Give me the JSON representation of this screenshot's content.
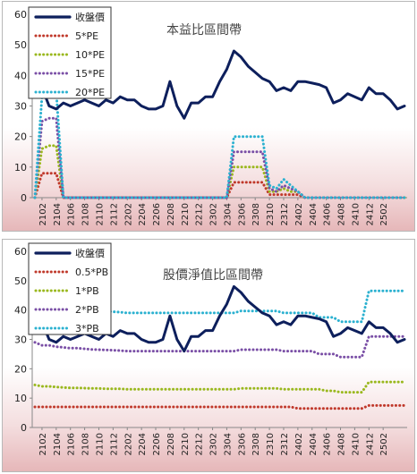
{
  "colors": {
    "price": "#0d1f5c",
    "s1": "#c0392b",
    "s2": "#9ab81e",
    "s3": "#7a4fa6",
    "s4": "#2bb1d0"
  },
  "chart_data": [
    {
      "type": "line",
      "title": "本益比區間帶",
      "ylim": [
        0,
        60
      ],
      "yticks": [
        "0",
        "10",
        "20",
        "30",
        "40",
        "50",
        "60"
      ],
      "x_tick_labels": [
        "2102",
        "2104",
        "2106",
        "2108",
        "2110",
        "2112",
        "2202",
        "2204",
        "2206",
        "2208",
        "2210",
        "2212",
        "2302",
        "2304",
        "2306",
        "2308",
        "2310",
        "2312",
        "2402",
        "2404",
        "2406",
        "2408",
        "2410",
        "2412",
        "2502"
      ],
      "x_first": "2101",
      "x_last": "2503",
      "legend_position": "top-left",
      "series": [
        {
          "name": "收盤價",
          "color_key": "price",
          "style": "solid",
          "values": [
            37,
            36,
            30,
            29,
            31,
            30,
            31,
            32,
            31,
            30,
            32,
            31,
            33,
            32,
            32,
            30,
            29,
            29,
            30,
            38,
            30,
            26,
            31,
            31,
            33,
            33,
            38,
            42,
            48,
            46,
            43,
            41,
            39,
            38,
            35,
            36,
            35,
            38,
            38,
            37.5,
            37,
            36,
            31,
            32,
            34,
            33,
            32,
            36,
            34,
            34,
            32,
            29,
            30
          ]
        },
        {
          "name": "5*PE",
          "color_key": "s1",
          "style": "dotted",
          "values": [
            0,
            8,
            8,
            8,
            0,
            0,
            0,
            0,
            0,
            0,
            0,
            0,
            0,
            0,
            0,
            0,
            0,
            0,
            0,
            0,
            0,
            0,
            0,
            0,
            0,
            0,
            0,
            0,
            5,
            5,
            5,
            5,
            5,
            1,
            1,
            1,
            1,
            1,
            0,
            0,
            0,
            0,
            0,
            0,
            0,
            0,
            0,
            0,
            0,
            0,
            0,
            0,
            0
          ]
        },
        {
          "name": "10*PE",
          "color_key": "s2",
          "style": "dotted",
          "values": [
            0,
            16,
            17,
            17,
            0,
            0,
            0,
            0,
            0,
            0,
            0,
            0,
            0,
            0,
            0,
            0,
            0,
            0,
            0,
            0,
            0,
            0,
            0,
            0,
            0,
            0,
            0,
            0,
            10,
            10,
            10,
            10,
            10,
            2,
            2,
            3,
            2,
            2,
            0,
            0,
            0,
            0,
            0,
            0,
            0,
            0,
            0,
            0,
            0,
            0,
            0,
            0,
            0
          ]
        },
        {
          "name": "15*PE",
          "color_key": "s3",
          "style": "dotted",
          "values": [
            0,
            25,
            26,
            26,
            0,
            0,
            0,
            0,
            0,
            0,
            0,
            0,
            0,
            0,
            0,
            0,
            0,
            0,
            0,
            0,
            0,
            0,
            0,
            0,
            0,
            0,
            0,
            0,
            15,
            15,
            15,
            15,
            15,
            3,
            2,
            4,
            3,
            2,
            0,
            0,
            0,
            0,
            0,
            0,
            0,
            0,
            0,
            0,
            0,
            0,
            0,
            0,
            0
          ]
        },
        {
          "name": "20*PE",
          "color_key": "s4",
          "style": "dotted",
          "values": [
            0,
            33,
            34,
            35,
            0,
            0,
            0,
            0,
            0,
            0,
            0,
            0,
            0,
            0,
            0,
            0,
            0,
            0,
            0,
            0,
            0,
            0,
            0,
            0,
            0,
            0,
            0,
            0,
            20,
            20,
            20,
            20,
            20,
            4,
            3,
            6,
            4,
            2,
            0,
            0,
            0,
            0,
            0,
            0,
            0,
            0,
            0,
            0,
            0,
            0,
            0,
            0,
            0
          ]
        }
      ]
    },
    {
      "type": "line",
      "title": "股價淨值比區間帶",
      "ylim": [
        0,
        60
      ],
      "yticks": [
        "0",
        "10",
        "20",
        "30",
        "40",
        "50",
        "60"
      ],
      "x_tick_labels": [
        "2102",
        "2104",
        "2106",
        "2108",
        "2110",
        "2112",
        "2202",
        "2204",
        "2206",
        "2208",
        "2210",
        "2212",
        "2302",
        "2304",
        "2306",
        "2308",
        "2310",
        "2312",
        "2402",
        "2404",
        "2406",
        "2408",
        "2410",
        "2412",
        "2502"
      ],
      "x_first": "2101",
      "x_last": "2503",
      "legend_position": "top-left",
      "series": [
        {
          "name": "收盤價",
          "color_key": "price",
          "style": "solid",
          "values": [
            37,
            36,
            30,
            29,
            31,
            30,
            31,
            32,
            31,
            30,
            32,
            31,
            33,
            32,
            32,
            30,
            29,
            29,
            30,
            38,
            30,
            26,
            31,
            31,
            33,
            33,
            38,
            42,
            48,
            46,
            43,
            41,
            39,
            38,
            35,
            36,
            35,
            38,
            38,
            37.5,
            37,
            36,
            31,
            32,
            34,
            33,
            32,
            36,
            34,
            34,
            32,
            29,
            30
          ]
        },
        {
          "name": "0.5*PB",
          "color_key": "s1",
          "style": "dotted",
          "values": [
            7,
            7,
            7,
            7,
            7,
            7,
            7,
            7,
            7,
            7,
            7,
            7,
            7,
            7,
            7,
            7,
            7,
            7,
            7,
            7,
            7,
            7,
            7,
            7,
            7,
            7,
            7,
            7,
            7,
            7,
            7,
            7,
            7,
            7,
            7,
            7,
            7,
            6.5,
            6.5,
            6.5,
            6.5,
            6.5,
            6.5,
            6.5,
            6.5,
            6.5,
            6.5,
            7.5,
            7.5,
            7.5,
            7.5,
            7.5,
            7.5
          ]
        },
        {
          "name": "1*PB",
          "color_key": "s2",
          "style": "dotted",
          "values": [
            14.5,
            14,
            14,
            13.8,
            13.6,
            13.5,
            13.5,
            13.4,
            13.3,
            13.3,
            13.2,
            13.2,
            13.2,
            13,
            13,
            13,
            13,
            13,
            13,
            13,
            13,
            13,
            13,
            13,
            13,
            13,
            13,
            13,
            13,
            13.3,
            13.3,
            13.3,
            13.3,
            13.3,
            13.3,
            13,
            13,
            13,
            13,
            13,
            13,
            12.5,
            12.5,
            12,
            12,
            12,
            12,
            15.5,
            15.5,
            15.5,
            15.5,
            15.5,
            15.5
          ]
        },
        {
          "name": "2*PB",
          "color_key": "s3",
          "style": "dotted",
          "values": [
            29,
            28,
            28,
            27.5,
            27.3,
            27,
            27,
            26.8,
            26.6,
            26.5,
            26.4,
            26.3,
            26.2,
            26,
            26,
            26,
            26,
            26,
            26,
            26,
            26,
            26,
            26,
            26,
            26,
            26,
            26,
            26,
            26,
            26.5,
            26.5,
            26.5,
            26.5,
            26.5,
            26.5,
            26,
            26,
            26,
            26,
            26,
            25,
            25,
            25,
            24,
            24,
            24,
            24,
            31,
            31,
            31,
            31,
            31,
            31
          ]
        },
        {
          "name": "3*PB",
          "color_key": "s4",
          "style": "dotted",
          "values": [
            43,
            42,
            42,
            41,
            41,
            40.5,
            40.5,
            40.2,
            40,
            39.8,
            39.6,
            39.4,
            39.3,
            39,
            39,
            39,
            39,
            39,
            39,
            39,
            39,
            39,
            39,
            39,
            39,
            39,
            39,
            39,
            39,
            39.7,
            39.7,
            39.7,
            39.7,
            39.7,
            39.7,
            39,
            39,
            39,
            39,
            39,
            37.5,
            37.5,
            37.5,
            36,
            36,
            36,
            36,
            46.5,
            46.5,
            46.5,
            46.5,
            46.5,
            46.5
          ]
        }
      ]
    }
  ]
}
